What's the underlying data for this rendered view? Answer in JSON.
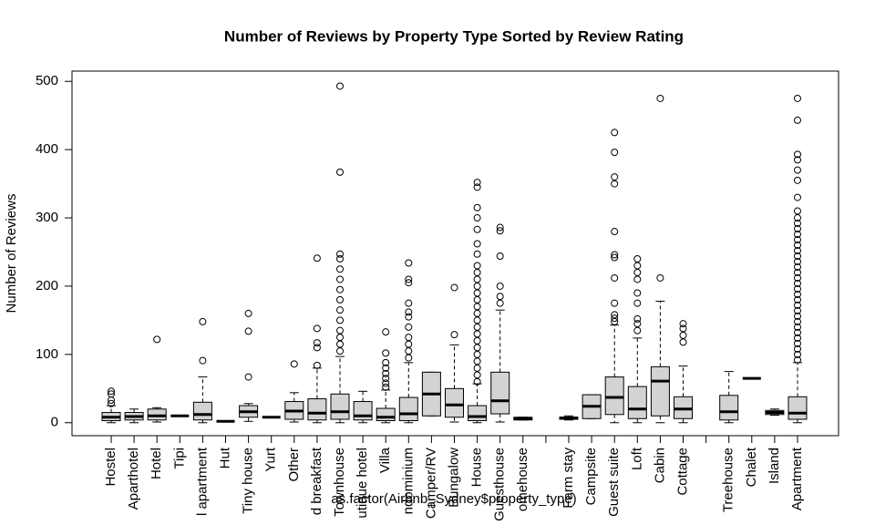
{
  "chart_data": {
    "type": "boxplot",
    "title": "Number of Reviews by Property Type Sorted by Review Rating",
    "x_label": "as.factor(Airbnb_Sydney$property_type)",
    "y_label": "Number of Reviews",
    "color": "#d3d3d3",
    "ylim": [
      -19,
      515
    ],
    "yticks": [
      0,
      100,
      200,
      300,
      400,
      500
    ],
    "categories": [
      "Hostel",
      "Aparthotel",
      "Hotel",
      "Tipi",
      "l apartment",
      "Hut",
      "Tiny house",
      "Yurt",
      "Other",
      "d breakfast",
      "Townhouse",
      "utique hotel",
      "Villa",
      "ndominium",
      "Camper/RV",
      "Bungalow",
      "House",
      "Guesthouse",
      "omehouse",
      null,
      "Farm stay",
      "Campsite",
      "Guest suite",
      "Loft",
      "Cabin",
      "Cottage",
      null,
      "Treehouse",
      "Chalet",
      "Island",
      "Apartment"
    ],
    "min": [
      0,
      0,
      1,
      10,
      0,
      2,
      2,
      8,
      1,
      0,
      0,
      0,
      0,
      0,
      10,
      1,
      0,
      1,
      4,
      null,
      4,
      6,
      0,
      0,
      0,
      0,
      null,
      0,
      65,
      11,
      0
    ],
    "q1": [
      3,
      4,
      4,
      10,
      4,
      2,
      8,
      8,
      5,
      4,
      5,
      4,
      3,
      3,
      10,
      8,
      3,
      13,
      4,
      null,
      5,
      6,
      12,
      6,
      10,
      6,
      null,
      4,
      65,
      12,
      5
    ],
    "median": [
      8,
      9,
      10,
      10,
      12,
      2,
      16,
      8,
      17,
      14,
      16,
      10,
      8,
      13,
      42,
      26,
      9,
      32,
      6,
      null,
      7,
      24,
      37,
      20,
      61,
      20,
      null,
      16,
      65,
      15,
      14
    ],
    "q3": [
      15,
      15,
      20,
      10,
      30,
      2,
      25,
      8,
      31,
      35,
      42,
      31,
      21,
      37,
      74,
      50,
      25,
      74,
      8,
      null,
      8,
      41,
      67,
      53,
      82,
      38,
      null,
      40,
      65,
      18,
      38
    ],
    "max": [
      25,
      20,
      22,
      10,
      67,
      2,
      28,
      8,
      44,
      80,
      97,
      46,
      48,
      88,
      74,
      114,
      57,
      165,
      8,
      null,
      10,
      41,
      143,
      124,
      178,
      83,
      null,
      75,
      65,
      20,
      88
    ],
    "outliers": [
      [
        28,
        33,
        42,
        46
      ],
      [],
      [
        122
      ],
      [],
      [
        91,
        148
      ],
      [],
      [
        67,
        134,
        160
      ],
      [],
      [
        86
      ],
      [
        84,
        110,
        117,
        138,
        241
      ],
      [
        105,
        115,
        125,
        135,
        150,
        165,
        180,
        195,
        210,
        225,
        240,
        247,
        367,
        493
      ],
      [],
      [
        52,
        58,
        65,
        72,
        80,
        88,
        102,
        133
      ],
      [
        95,
        105,
        115,
        125,
        140,
        155,
        162,
        175,
        205,
        210,
        234
      ],
      [],
      [
        129,
        198
      ],
      [
        60,
        70,
        80,
        90,
        100,
        110,
        120,
        130,
        140,
        150,
        160,
        170,
        180,
        190,
        200,
        210,
        220,
        230,
        247,
        262,
        283,
        300,
        315,
        345,
        352
      ],
      [
        175,
        185,
        200,
        244,
        281,
        286
      ],
      [],
      [],
      [],
      [],
      [
        148,
        153,
        158,
        175,
        212,
        242,
        246,
        280,
        350,
        360,
        396,
        425
      ],
      [
        135,
        145,
        152,
        175,
        190,
        210,
        220,
        230,
        240
      ],
      [
        212,
        475
      ],
      [
        118,
        128,
        138,
        145
      ],
      [],
      [],
      [],
      [],
      [
        92,
        100,
        108,
        116,
        124,
        132,
        140,
        148,
        156,
        164,
        172,
        180,
        188,
        196,
        204,
        212,
        220,
        228,
        236,
        244,
        252,
        260,
        268,
        276,
        284,
        292,
        300,
        310,
        330,
        355,
        370,
        385,
        393,
        443,
        475
      ]
    ]
  }
}
